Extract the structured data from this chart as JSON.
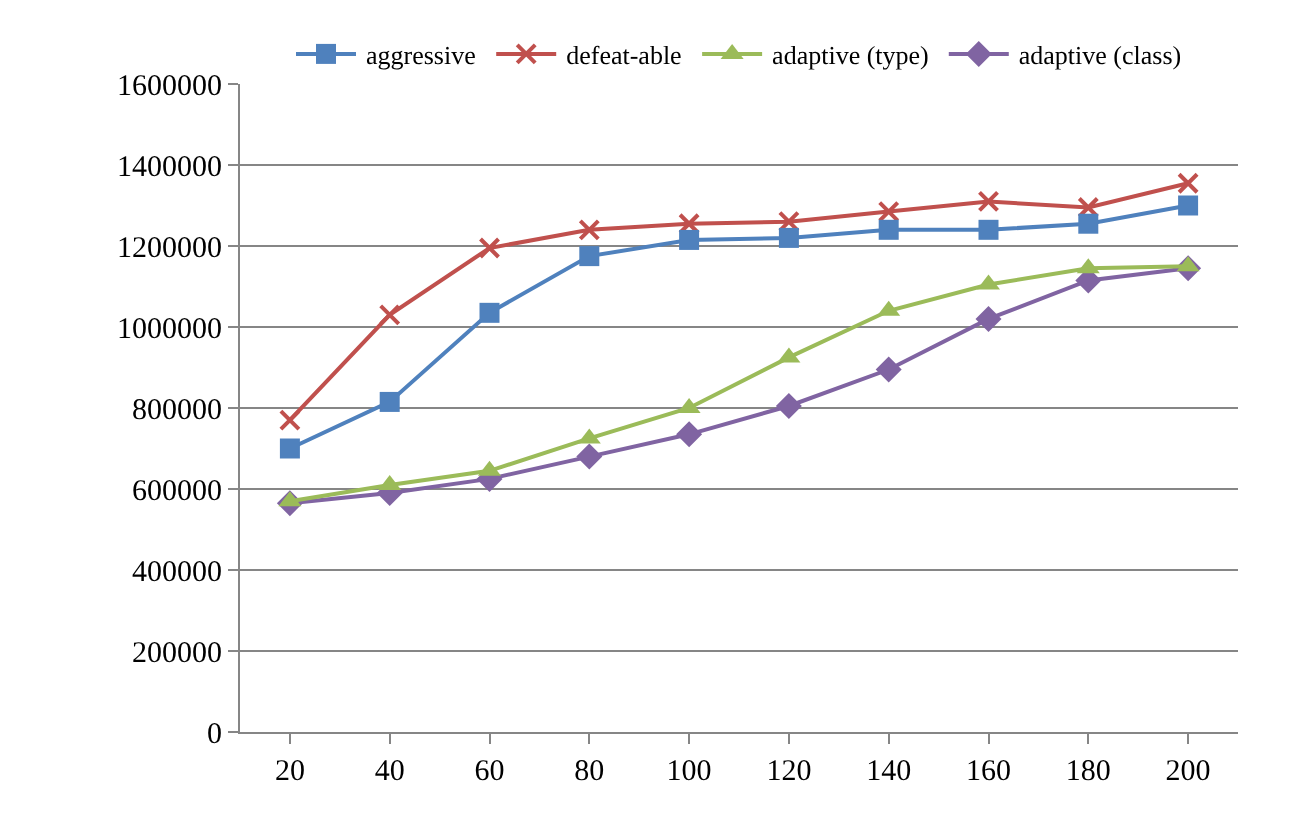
{
  "chart_data": {
    "type": "line",
    "categories": [
      "20",
      "40",
      "60",
      "80",
      "100",
      "120",
      "140",
      "160",
      "180",
      "200"
    ],
    "series": [
      {
        "name": "aggressive",
        "color": "#4f81bd",
        "marker": "square",
        "values": [
          700000,
          815000,
          1035000,
          1175000,
          1215000,
          1220000,
          1240000,
          1240000,
          1255000,
          1300000
        ]
      },
      {
        "name": "defeat-able",
        "color": "#c0504d",
        "marker": "cross",
        "values": [
          770000,
          1030000,
          1195000,
          1240000,
          1255000,
          1260000,
          1285000,
          1310000,
          1295000,
          1355000
        ]
      },
      {
        "name": "adaptive (type)",
        "color": "#9bbb59",
        "marker": "triangle",
        "values": [
          570000,
          610000,
          645000,
          725000,
          800000,
          925000,
          1040000,
          1105000,
          1145000,
          1150000
        ]
      },
      {
        "name": "adaptive (class)",
        "color": "#8064a2",
        "marker": "diamond",
        "values": [
          565000,
          590000,
          625000,
          680000,
          735000,
          805000,
          895000,
          1020000,
          1115000,
          1145000
        ]
      }
    ],
    "ylim": [
      0,
      1600000
    ],
    "yticks": [
      0,
      200000,
      400000,
      600000,
      800000,
      1000000,
      1200000,
      1400000,
      1600000
    ],
    "grid": "y",
    "legend": "top",
    "line_style": "solid"
  }
}
